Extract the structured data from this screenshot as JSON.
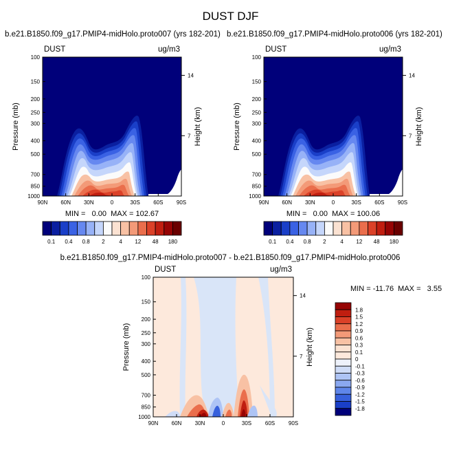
{
  "title": "DUST DJF",
  "colors": {
    "text": "#000000",
    "frame": "#000000"
  },
  "panels": {
    "left": {
      "title": "b.e21.B1850.f09_g17.PMIP4-midHolo.proto007 (yrs 182-201)",
      "var_label": "DUST",
      "units": "ug/m3",
      "stats": "MIN =   0.00  MAX = 102.67"
    },
    "right": {
      "title": "b.e21.B1850.f09_g17.PMIP4-midHolo.proto006 (yrs 182-201)",
      "var_label": "DUST",
      "units": "ug/m3",
      "stats": "MIN =   0.00  MAX = 100.06"
    },
    "diff": {
      "title": "b.e21.B1850.f09_g17.PMIP4-midHolo.proto007 - b.e21.B1850.f09_g17.PMIP4-midHolo.proto006",
      "var_label": "DUST",
      "units": "ug/m3",
      "stats": "MIN = -11.76  MAX =   3.55"
    }
  },
  "chart_data": [
    {
      "type": "heatmap",
      "title": "b.e21.B1850.f09_g17.PMIP4-midHolo.proto007 (yrs 182-201)",
      "variable": "DUST",
      "units": "ug/m3",
      "xlabel": "",
      "ylabel": "Pressure (mb)",
      "y2label": "Height (km)",
      "x_ticks": [
        "90N",
        "60N",
        "30N",
        "0",
        "30S",
        "60S",
        "90S"
      ],
      "y_ticks": [
        100,
        150,
        200,
        250,
        300,
        400,
        500,
        700,
        850,
        1000
      ],
      "y2_ticks": [
        14,
        7
      ],
      "ylim": [
        100,
        1000
      ],
      "min": 0.0,
      "max": 102.67,
      "colorbar": {
        "levels": [
          0.1,
          0.2,
          0.4,
          0.6,
          0.8,
          1,
          2,
          3,
          4,
          8,
          12,
          24,
          48,
          96,
          180
        ],
        "labels": [
          "0.1",
          "0.4",
          "0.8",
          "2",
          "4",
          "12",
          "48",
          "180"
        ],
        "colors": [
          "#00007a",
          "#0a1fa0",
          "#1a3fc8",
          "#3a62e4",
          "#6688f0",
          "#97b2f7",
          "#c5d6fb",
          "#fbfbfb",
          "#fbe2d2",
          "#f8c1a4",
          "#f39a78",
          "#ea6e4c",
          "#db4128",
          "#c01e10",
          "#960404",
          "#6a0000"
        ]
      }
    },
    {
      "type": "heatmap",
      "title": "b.e21.B1850.f09_g17.PMIP4-midHolo.proto006 (yrs 182-201)",
      "variable": "DUST",
      "units": "ug/m3",
      "xlabel": "",
      "ylabel": "Pressure (mb)",
      "y2label": "Height (km)",
      "x_ticks": [
        "90N",
        "60N",
        "30N",
        "0",
        "30S",
        "60S",
        "90S"
      ],
      "y_ticks": [
        100,
        150,
        200,
        250,
        300,
        400,
        500,
        700,
        850,
        1000
      ],
      "y2_ticks": [
        14,
        7
      ],
      "ylim": [
        100,
        1000
      ],
      "min": 0.0,
      "max": 100.06,
      "colorbar": {
        "levels": [
          0.1,
          0.2,
          0.4,
          0.6,
          0.8,
          1,
          2,
          3,
          4,
          8,
          12,
          24,
          48,
          96,
          180
        ],
        "labels": [
          "0.1",
          "0.4",
          "0.8",
          "2",
          "4",
          "12",
          "48",
          "180"
        ],
        "colors": [
          "#00007a",
          "#0a1fa0",
          "#1a3fc8",
          "#3a62e4",
          "#6688f0",
          "#97b2f7",
          "#c5d6fb",
          "#fbfbfb",
          "#fbe2d2",
          "#f8c1a4",
          "#f39a78",
          "#ea6e4c",
          "#db4128",
          "#c01e10",
          "#960404",
          "#6a0000"
        ]
      }
    },
    {
      "type": "heatmap",
      "title": "b.e21.B1850.f09_g17.PMIP4-midHolo.proto007 - b.e21.B1850.f09_g17.PMIP4-midHolo.proto006",
      "variable": "DUST",
      "units": "ug/m3",
      "xlabel": "",
      "ylabel": "Pressure (mb)",
      "y2label": "Height (km)",
      "x_ticks": [
        "90N",
        "60N",
        "30N",
        "0",
        "30S",
        "60S",
        "90S"
      ],
      "y_ticks": [
        100,
        150,
        200,
        250,
        300,
        400,
        500,
        700,
        850,
        1000
      ],
      "y2_ticks": [
        14,
        7
      ],
      "ylim": [
        100,
        1000
      ],
      "min": -11.76,
      "max": 3.55,
      "colorbar": {
        "labels": [
          "1.8",
          "1.5",
          "1.2",
          "0.9",
          "0.6",
          "0.3",
          "0.1",
          "0",
          "-0.1",
          "-0.3",
          "-0.6",
          "-0.9",
          "-1.2",
          "-1.5",
          "-1.8"
        ],
        "colors": [
          "#960404",
          "#c01e10",
          "#db4128",
          "#ea6e4c",
          "#f39a78",
          "#f8c1a4",
          "#fbe2d2",
          "#fde9dc",
          "#eef2fb",
          "#cfdcf7",
          "#aec4f5",
          "#8aa8f0",
          "#5f86ea",
          "#3760dc",
          "#1a3fc8",
          "#00007a"
        ]
      }
    }
  ]
}
